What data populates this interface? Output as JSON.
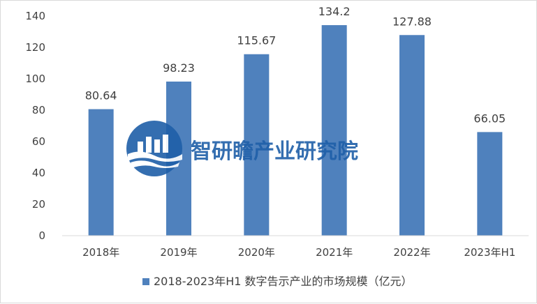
{
  "chart_data": {
    "type": "bar",
    "categories": [
      "2018年",
      "2019年",
      "2020年",
      "2021年",
      "2022年",
      "2023年H1"
    ],
    "series": [
      {
        "name": "2018-2023年H1 数字告示产业的市场规模（亿元）",
        "values": [
          80.64,
          98.23,
          115.67,
          134.2,
          127.88,
          66.05
        ],
        "color": "#4f81bd"
      }
    ],
    "data_labels": [
      "80.64",
      "98.23",
      "115.67",
      "134.2",
      "127.88",
      "66.05"
    ],
    "ylim": [
      0,
      140
    ],
    "yticks": [
      "0",
      "20",
      "40",
      "60",
      "80",
      "100",
      "120",
      "140"
    ],
    "grid": false,
    "legend_position": "bottom"
  },
  "watermark": {
    "text": "智研瞻产业研究院",
    "color": "#1f5fa8"
  }
}
